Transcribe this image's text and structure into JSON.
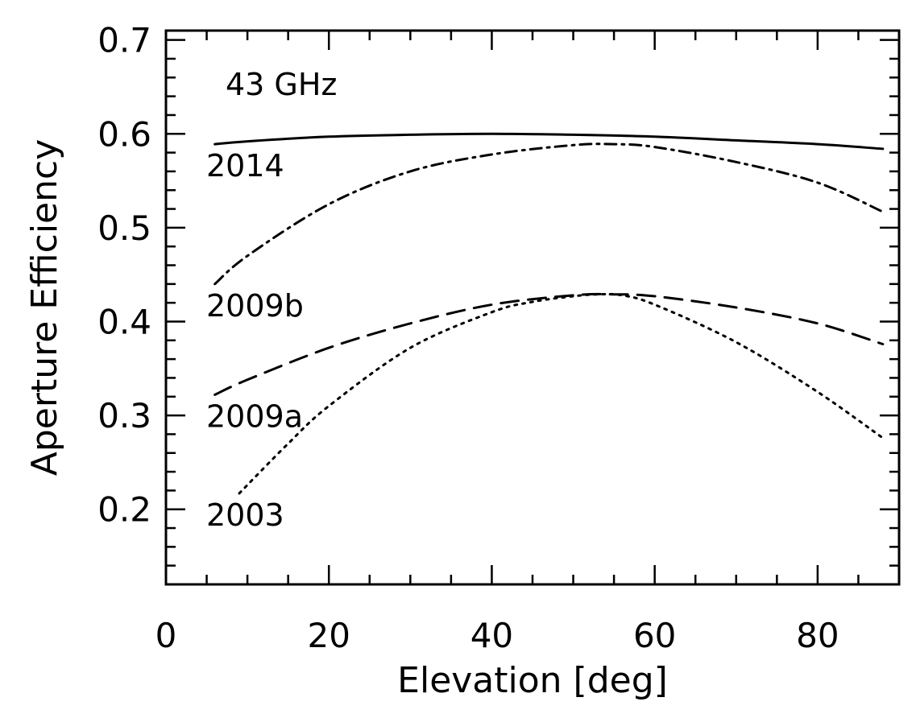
{
  "chart_data": {
    "type": "line",
    "annotation": "43 GHz",
    "xlabel": "Elevation [deg]",
    "ylabel": "Aperture Efficiency",
    "xlim": [
      0,
      90
    ],
    "ylim": [
      0.12,
      0.71
    ],
    "x_ticks": [
      "0",
      "20",
      "40",
      "60",
      "80"
    ],
    "y_ticks": [
      "0.2",
      "0.3",
      "0.4",
      "0.5",
      "0.6",
      "0.7"
    ],
    "x_tick_values": [
      0,
      20,
      40,
      60,
      80
    ],
    "y_tick_values": [
      0.2,
      0.3,
      0.4,
      0.5,
      0.6,
      0.7
    ],
    "x_minor_step": 5,
    "y_minor_step": 0.02,
    "grid": false,
    "series": [
      {
        "name": "2014",
        "style": "solid",
        "color": "#000000",
        "peak_elevation": 40,
        "x": [
          6,
          10,
          20,
          30,
          40,
          50,
          60,
          70,
          80,
          88
        ],
        "y": [
          0.589,
          0.592,
          0.597,
          0.599,
          0.6,
          0.599,
          0.597,
          0.593,
          0.589,
          0.584
        ]
      },
      {
        "name": "2009b",
        "style": "dashdot",
        "color": "#000000",
        "peak_elevation": 55,
        "x": [
          6,
          10,
          20,
          30,
          40,
          50,
          55,
          60,
          70,
          80,
          88
        ],
        "y": [
          0.44,
          0.47,
          0.525,
          0.56,
          0.578,
          0.588,
          0.589,
          0.586,
          0.57,
          0.548,
          0.517
        ]
      },
      {
        "name": "2009a",
        "style": "dashed",
        "color": "#000000",
        "peak_elevation": 55,
        "x": [
          6,
          10,
          20,
          30,
          40,
          50,
          55,
          60,
          70,
          80,
          88
        ],
        "y": [
          0.322,
          0.338,
          0.372,
          0.398,
          0.418,
          0.428,
          0.429,
          0.427,
          0.415,
          0.398,
          0.376
        ]
      },
      {
        "name": "2003",
        "style": "dotted",
        "color": "#000000",
        "peak_elevation": 53,
        "x": [
          9,
          15,
          20,
          30,
          40,
          45,
          50,
          53,
          56,
          60,
          70,
          80,
          88
        ],
        "y": [
          0.217,
          0.27,
          0.31,
          0.372,
          0.41,
          0.421,
          0.427,
          0.429,
          0.428,
          0.418,
          0.378,
          0.325,
          0.276
        ]
      }
    ]
  }
}
